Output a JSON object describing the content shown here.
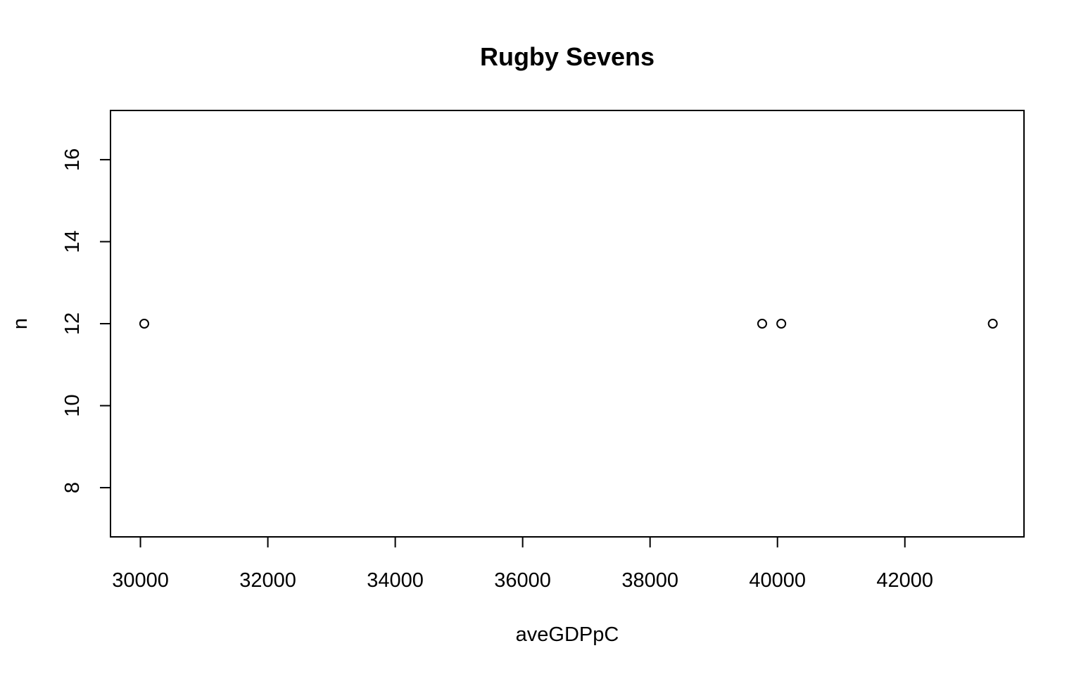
{
  "chart_data": {
    "type": "scatter",
    "title": "Rugby Sevens",
    "xlabel": "aveGDPpC",
    "ylabel": "n",
    "xlim": [
      29530,
      43870
    ],
    "ylim": [
      6.8,
      17.2
    ],
    "x_ticks": [
      30000,
      32000,
      34000,
      36000,
      38000,
      40000,
      42000
    ],
    "y_ticks": [
      8,
      10,
      12,
      14,
      16
    ],
    "grid": false,
    "legend": "none",
    "marker": "open-circle",
    "points": [
      {
        "x": 30060,
        "y": 12
      },
      {
        "x": 39760,
        "y": 12
      },
      {
        "x": 40060,
        "y": 12
      },
      {
        "x": 43380,
        "y": 12
      }
    ]
  }
}
